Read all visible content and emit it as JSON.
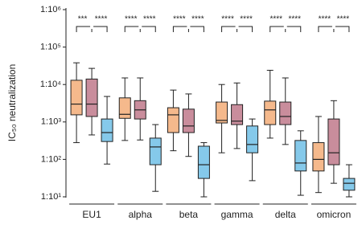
{
  "chart_data": {
    "type": "box",
    "y_label": "IC₅₀ neutralization",
    "categories": [
      "EU1",
      "alpha",
      "beta",
      "gamma",
      "delta",
      "omicron"
    ],
    "log_scale": true,
    "ylim": [
      10,
      1000000
    ],
    "yticks": [
      {
        "value": 10,
        "label": "1:10¹"
      },
      {
        "value": 100,
        "label": "1:10²"
      },
      {
        "value": 1000,
        "label": "1:10³"
      },
      {
        "value": 10000,
        "label": "1:10⁴"
      },
      {
        "value": 100000,
        "label": "1:10⁵"
      },
      {
        "value": 1000000,
        "label": "1:10⁶"
      }
    ],
    "series": [
      {
        "color": "#f5b98c",
        "min": [
          280,
          320,
          170,
          150,
          370,
          13
        ],
        "q1": [
          1550,
          1250,
          520,
          940,
          850,
          49
        ],
        "median": [
          3000,
          1600,
          1550,
          1100,
          2100,
          100
        ],
        "q3": [
          13000,
          4400,
          2400,
          3400,
          3600,
          280
        ],
        "max": [
          38000,
          15000,
          7100,
          10000,
          24000,
          1400
        ]
      },
      {
        "color": "#c98d9c",
        "min": [
          450,
          330,
          120,
          195,
          250,
          23
        ],
        "q1": [
          1400,
          1200,
          520,
          850,
          850,
          72
        ],
        "median": [
          3000,
          2100,
          780,
          1050,
          1400,
          150
        ],
        "q3": [
          14000,
          3700,
          2200,
          2900,
          3400,
          1200
        ],
        "max": [
          27000,
          15000,
          5600,
          11000,
          15000,
          3700
        ]
      },
      {
        "color": "#85c9ea",
        "min": [
          75,
          14,
          10,
          27,
          11,
          10
        ],
        "q1": [
          300,
          72,
          31,
          150,
          49,
          15
        ],
        "median": [
          520,
          215,
          72,
          250,
          80,
          23
        ],
        "q3": [
          1200,
          370,
          225,
          780,
          320,
          31
        ],
        "max": [
          4800,
          850,
          280,
          1200,
          580,
          72
        ]
      }
    ],
    "significance": [
      [
        "***",
        "****"
      ],
      [
        "****",
        "****"
      ],
      [
        "****",
        "****"
      ],
      [
        "****",
        "****"
      ],
      [
        "****",
        "****"
      ],
      [
        "****",
        "****"
      ]
    ]
  }
}
